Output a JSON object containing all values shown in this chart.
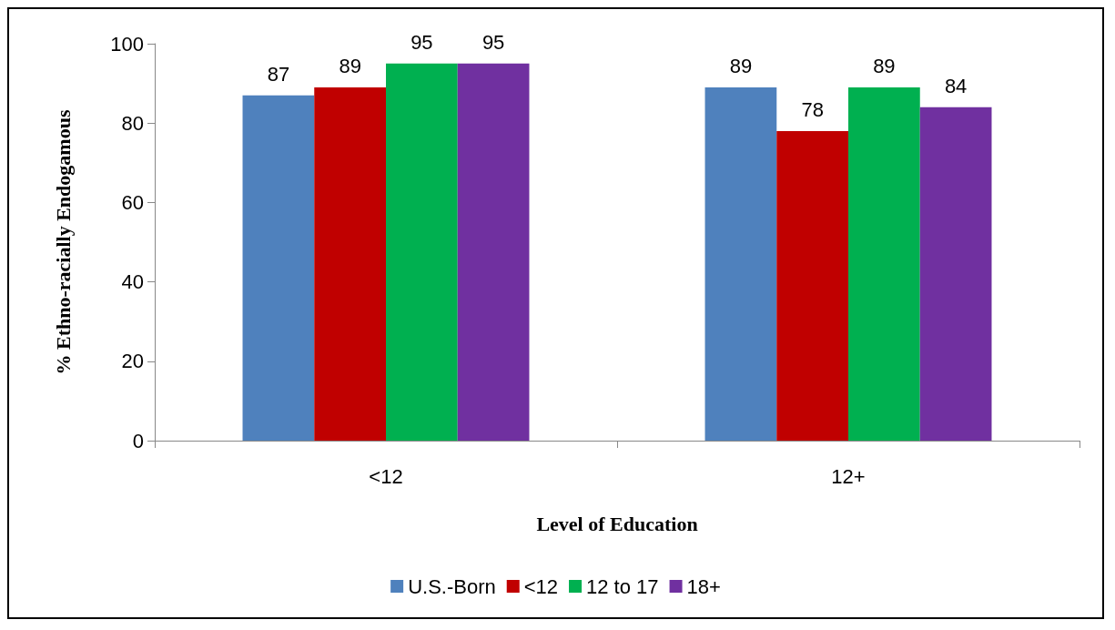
{
  "chart_data": {
    "type": "bar",
    "xlabel": "Level of Education",
    "ylabel": "% Ethno-racially Endogamous",
    "categories": [
      "<12",
      "12+"
    ],
    "series": [
      {
        "name": "U.S.-Born",
        "color": "#4f81bd",
        "values": [
          87,
          89
        ]
      },
      {
        "name": "<12",
        "color": "#c00000",
        "values": [
          89,
          78
        ]
      },
      {
        "name": "12 to 17",
        "color": "#00b050",
        "values": [
          95,
          89
        ]
      },
      {
        "name": "18+",
        "color": "#7030a0",
        "values": [
          95,
          84
        ]
      }
    ],
    "ylim": [
      0,
      100
    ],
    "yticks": [
      0,
      20,
      40,
      60,
      80,
      100
    ],
    "grid": false,
    "legend": "bottom",
    "data_labels": true
  }
}
